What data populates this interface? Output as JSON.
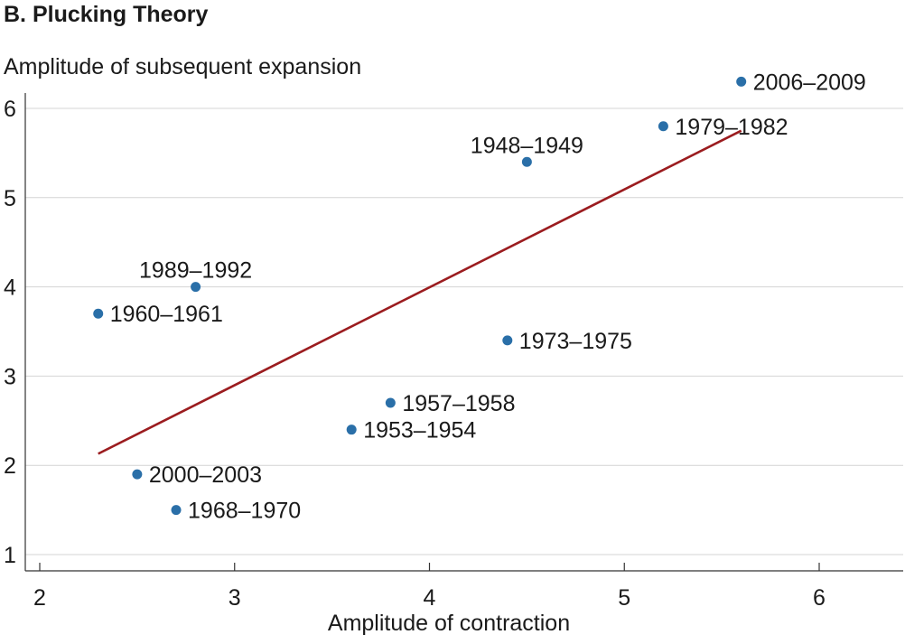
{
  "chart_data": {
    "type": "scatter",
    "title": "B. Plucking Theory",
    "xlabel": "Amplitude of contraction",
    "ylabel": "Amplitude of subsequent expansion",
    "xlim": [
      1.95,
      6.45
    ],
    "ylim": [
      1,
      6.45
    ],
    "xticks": [
      2,
      3,
      4,
      5,
      6
    ],
    "yticks": [
      1,
      2,
      3,
      4,
      5,
      6
    ],
    "grid": "horizontal",
    "point_color": "#2a6fa8",
    "fit_color": "#9b1c1f",
    "points": [
      {
        "label": "2006–2009",
        "x": 5.6,
        "y": 6.3,
        "label_side": "right"
      },
      {
        "label": "1979–1982",
        "x": 5.2,
        "y": 5.8,
        "label_side": "right"
      },
      {
        "label": "1948–1949",
        "x": 4.5,
        "y": 5.4,
        "label_side": "above"
      },
      {
        "label": "1989–1992",
        "x": 2.8,
        "y": 4.0,
        "label_side": "above"
      },
      {
        "label": "1960–1961",
        "x": 2.3,
        "y": 3.7,
        "label_side": "right"
      },
      {
        "label": "1973–1975",
        "x": 4.4,
        "y": 3.4,
        "label_side": "right"
      },
      {
        "label": "1957–1958",
        "x": 3.8,
        "y": 2.7,
        "label_side": "right"
      },
      {
        "label": "1953–1954",
        "x": 3.6,
        "y": 2.4,
        "label_side": "right"
      },
      {
        "label": "2000–2003",
        "x": 2.5,
        "y": 1.9,
        "label_side": "right"
      },
      {
        "label": "1968–1970",
        "x": 2.7,
        "y": 1.5,
        "label_side": "right"
      }
    ],
    "fit_line": {
      "x": [
        2.3,
        5.6
      ],
      "y": [
        2.13,
        5.75
      ]
    }
  }
}
